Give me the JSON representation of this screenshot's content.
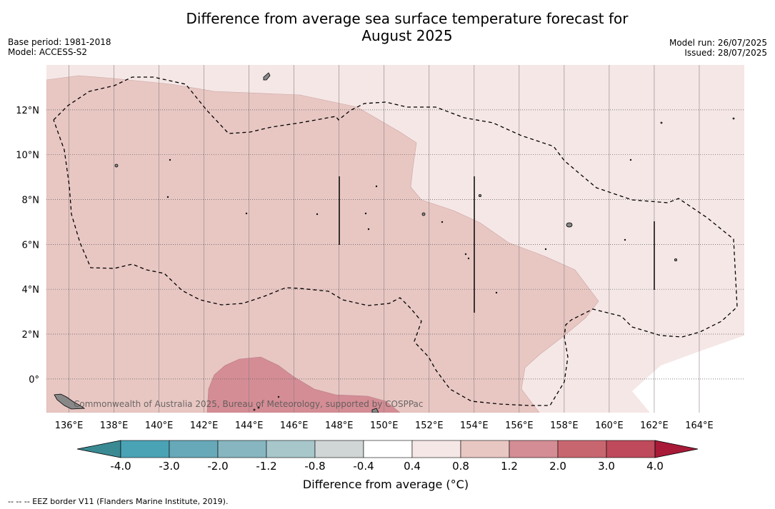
{
  "title_line1": "Difference from average sea surface temperature forecast for",
  "title_line2": "August 2025",
  "meta_left": [
    "Base period: 1981-2018",
    "Model: ACCESS-S2"
  ],
  "meta_right": [
    "Model run: 26/07/2025",
    "Issued: 28/07/2025"
  ],
  "map": {
    "lon_range": [
      135,
      166
    ],
    "lat_range": [
      -1.5,
      14
    ],
    "lon_ticks": [
      "136°E",
      "138°E",
      "140°E",
      "142°E",
      "144°E",
      "146°E",
      "148°E",
      "150°E",
      "152°E",
      "154°E",
      "156°E",
      "158°E",
      "160°E",
      "162°E",
      "164°E"
    ],
    "lat_ticks": [
      "12°N",
      "10°N",
      "8°N",
      "6°N",
      "4°N",
      "2°N",
      "0°"
    ],
    "copyright": "Commonwealth of Australia 2025, Bureau of Meteorology, supported by COSPPac",
    "colors": {
      "band_0p4_0p8": "#f5e7e6",
      "band_0p8_1p2": "#e8c7c3",
      "band_1p2_2p0": "#d48d95",
      "land": "#888888"
    }
  },
  "colorbar": {
    "tick_labels": [
      "-4.0",
      "-3.0",
      "-2.0",
      "-1.2",
      "-0.8",
      "-0.4",
      "0.4",
      "0.8",
      "1.2",
      "2.0",
      "3.0",
      "4.0"
    ],
    "colors": [
      "#3a8a93",
      "#4aa3b5",
      "#67a9b9",
      "#87b6c1",
      "#a8c7cb",
      "#cfd6d5",
      "#ffffff",
      "#f5e7e6",
      "#e8c7c3",
      "#d48d95",
      "#c8666f",
      "#be4a5b",
      "#a81a38"
    ],
    "label": "Difference from average (°C)"
  },
  "footnote": "--  --  -- EEZ border V11 (Flanders Marine Institute, 2019)."
}
